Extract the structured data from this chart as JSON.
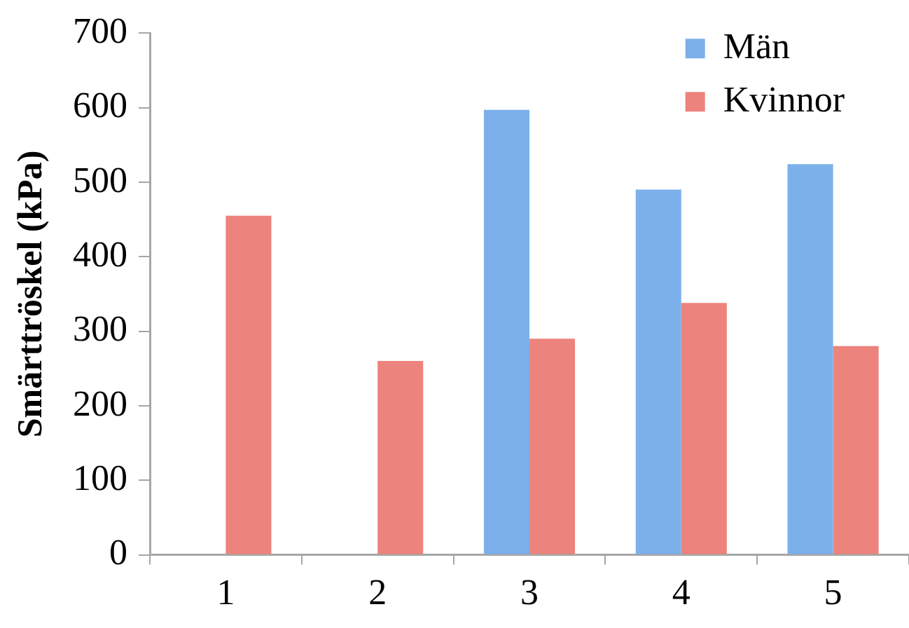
{
  "chart_data": {
    "type": "bar",
    "categories": [
      "1",
      "2",
      "3",
      "4",
      "5"
    ],
    "series": [
      {
        "name": "Män",
        "color": "#7bb0ea",
        "values": [
          null,
          null,
          597,
          490,
          524
        ]
      },
      {
        "name": "Kvinnor",
        "color": "#ec837c",
        "values": [
          455,
          260,
          290,
          338,
          280
        ]
      }
    ],
    "ylabel": "Smärttröskel (kPa)",
    "ylim": [
      0,
      700
    ],
    "yticks": [
      0,
      100,
      200,
      300,
      400,
      500,
      600,
      700
    ],
    "grid": false,
    "legend": "top right"
  }
}
